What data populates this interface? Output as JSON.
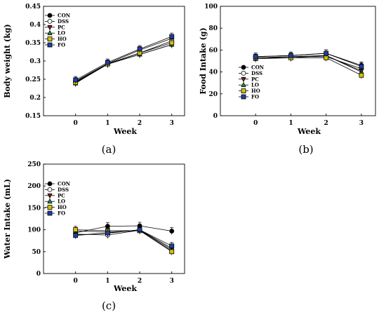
{
  "series_styles": [
    {
      "name": "CON",
      "marker": "circle",
      "fill": "#000000"
    },
    {
      "name": "DSS",
      "marker": "circle",
      "fill": "#ffffff"
    },
    {
      "name": "PC",
      "marker": "triangle-down",
      "fill": "#8b1a1a"
    },
    {
      "name": "LO",
      "marker": "triangle-up",
      "fill": "#2e8b57"
    },
    {
      "name": "HO",
      "marker": "square",
      "fill": "#d4c200"
    },
    {
      "name": "FO",
      "marker": "square",
      "fill": "#1f3fa6"
    }
  ],
  "chart_data": [
    {
      "type": "line",
      "panel_label": "(a)",
      "xlabel": "Week",
      "ylabel": "Body weight (kg)",
      "x": [
        0,
        1,
        2,
        3
      ],
      "x_ticks": [
        "0",
        "1",
        "2",
        "3"
      ],
      "xlim": [
        -1,
        3.4
      ],
      "ylim": [
        0.15,
        0.45
      ],
      "y_ticks": [
        "0.15",
        "0.2",
        "0.25",
        "0.3",
        "0.35",
        "0.4",
        "0.45"
      ],
      "legend_position": "top-left",
      "series": [
        {
          "name": "CON",
          "values": [
            0.245,
            0.293,
            0.33,
            0.362
          ]
        },
        {
          "name": "DSS",
          "values": [
            0.243,
            0.292,
            0.322,
            0.355
          ]
        },
        {
          "name": "PC",
          "values": [
            0.24,
            0.291,
            0.318,
            0.345
          ]
        },
        {
          "name": "LO",
          "values": [
            0.239,
            0.292,
            0.318,
            0.345
          ]
        },
        {
          "name": "HO",
          "values": [
            0.241,
            0.292,
            0.322,
            0.35
          ]
        },
        {
          "name": "FO",
          "values": [
            0.248,
            0.296,
            0.333,
            0.367
          ]
        }
      ]
    },
    {
      "type": "line",
      "panel_label": "(b)",
      "xlabel": "Week",
      "ylabel": "Food Intake (g)",
      "x": [
        0,
        1,
        2,
        3
      ],
      "x_ticks": [
        "0",
        "1",
        "2",
        "3"
      ],
      "xlim": [
        -1,
        3.4
      ],
      "ylim": [
        0,
        100
      ],
      "y_ticks": [
        "0",
        "20",
        "40",
        "60",
        "80",
        "100"
      ],
      "legend_position": "bottom-left",
      "series": [
        {
          "name": "CON",
          "values": [
            54,
            55,
            57,
            46
          ]
        },
        {
          "name": "DSS",
          "values": [
            53,
            54,
            54,
            43
          ]
        },
        {
          "name": "PC",
          "values": [
            53,
            54,
            55,
            41
          ]
        },
        {
          "name": "LO",
          "values": [
            52,
            53,
            55,
            40
          ]
        },
        {
          "name": "HO",
          "values": [
            53,
            53,
            53,
            37
          ]
        },
        {
          "name": "FO",
          "values": [
            54,
            55,
            57,
            45
          ]
        }
      ]
    },
    {
      "type": "line",
      "panel_label": "(c)",
      "xlabel": "Week",
      "ylabel": "Water Intake (mL)",
      "x": [
        0,
        1,
        2,
        3
      ],
      "x_ticks": [
        "0",
        "1",
        "2",
        "3"
      ],
      "xlim": [
        -1,
        3.4
      ],
      "ylim": [
        0,
        250
      ],
      "y_ticks": [
        "0",
        "50",
        "100",
        "150",
        "200",
        "250"
      ],
      "legend_position": "top-left",
      "series": [
        {
          "name": "CON",
          "values": [
            93,
            108,
            109,
            97
          ]
        },
        {
          "name": "DSS",
          "values": [
            90,
            88,
            99,
            55
          ]
        },
        {
          "name": "PC",
          "values": [
            88,
            92,
            100,
            58
          ]
        },
        {
          "name": "LO",
          "values": [
            97,
            95,
            98,
            52
          ]
        },
        {
          "name": "HO",
          "values": [
            100,
            98,
            98,
            50
          ]
        },
        {
          "name": "FO",
          "values": [
            87,
            93,
            100,
            63
          ]
        }
      ]
    }
  ]
}
